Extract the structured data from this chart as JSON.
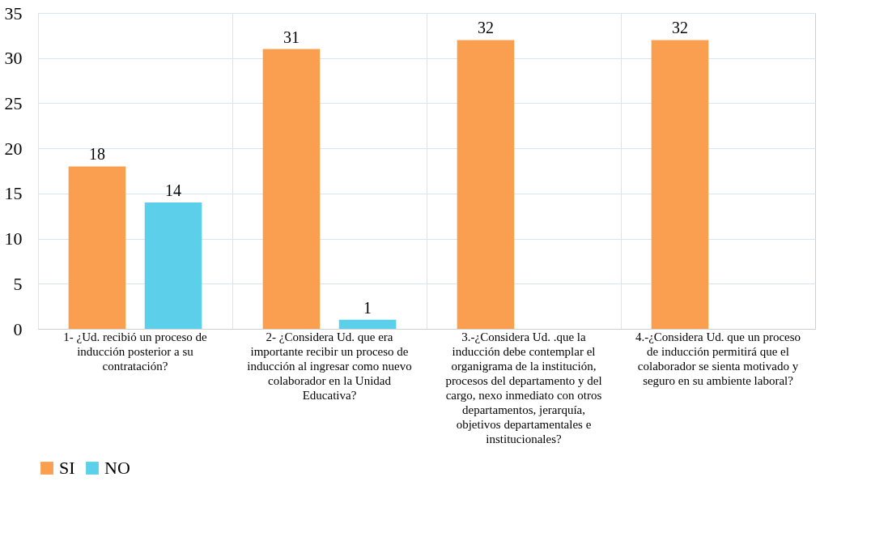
{
  "chart_data": {
    "type": "bar",
    "categories": [
      "1- ¿Ud. recibió un proceso de inducción posterior a su contratación?",
      "2- ¿Considera Ud. que era importante recibir un proceso de inducción al ingresar como nuevo colaborador en la Unidad Educativa?",
      "3.-¿Considera Ud. .que la inducción debe contemplar el organigrama de la institución, procesos del departamento y del cargo, nexo inmediato con otros departamentos, jerarquía, objetivos departamentales e institucionales?",
      "4.-¿Considera Ud. que un proceso de inducción permitirá que el colaborador se sienta motivado y seguro en su ambiente laboral?"
    ],
    "series": [
      {
        "name": "SI",
        "color": "#fa9f50",
        "values": [
          18,
          31,
          32,
          32
        ]
      },
      {
        "name": "NO",
        "color": "#5ccfeb",
        "values": [
          14,
          1,
          null,
          null
        ]
      }
    ],
    "ylim": [
      0,
      35
    ],
    "yticks": [
      0,
      5,
      10,
      15,
      20,
      25,
      30,
      35
    ],
    "grid": true,
    "legend": "bottom",
    "data_labels": true
  }
}
